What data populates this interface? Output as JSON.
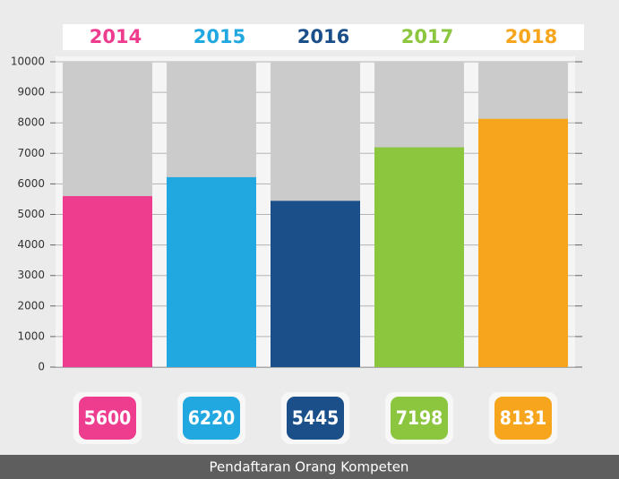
{
  "chart_data": {
    "type": "bar",
    "title": "Pendaftaran Orang Kompeten",
    "categories": [
      "2014",
      "2015",
      "2016",
      "2017",
      "2018"
    ],
    "values": [
      5600,
      6220,
      5445,
      7198,
      8131
    ],
    "colors": [
      "#ee3d8f",
      "#22a8e0",
      "#1b4f8a",
      "#8cc63f",
      "#f7a51c"
    ],
    "ylim": [
      0,
      10000
    ],
    "yticks": [
      0,
      1000,
      2000,
      3000,
      4000,
      5000,
      6000,
      7000,
      8000,
      9000,
      10000
    ],
    "grid": true
  }
}
